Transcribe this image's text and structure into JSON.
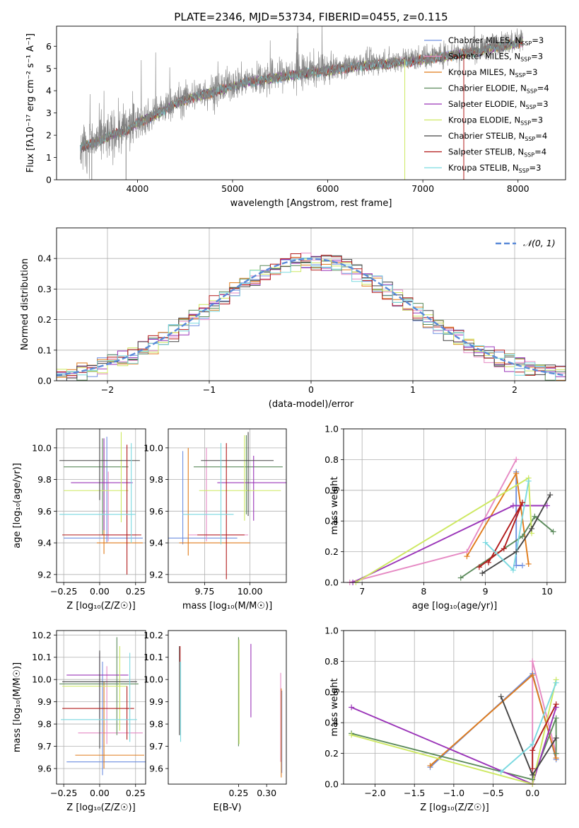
{
  "figure_title": "PLATE=2346, MJD=53734, FIBERID=0455, z=0.115",
  "chart_data": [
    {
      "id": "spectrum",
      "type": "line",
      "title": "PLATE=2346, MJD=53734, FIBERID=0455, z=0.115",
      "xlabel": "wavelength [Angstrom, rest frame]",
      "ylabel": "Flux [fλ10⁻¹⁷ erg cm⁻² s⁻¹ A⁻¹]",
      "xlim": [
        3150,
        8500
      ],
      "ylim": [
        0,
        6.9
      ],
      "xticks": [
        4000,
        5000,
        6000,
        7000,
        8000
      ],
      "yticks": [
        0,
        1,
        2,
        3,
        4,
        5,
        6
      ],
      "grid": false,
      "legend_position": "top-right",
      "data_trace": {
        "x_range": [
          3400,
          8050
        ],
        "color": "#808080",
        "approximate_shape_points": [
          [
            3400,
            1.5
          ],
          [
            3500,
            1.6
          ],
          [
            3700,
            2.0
          ],
          [
            3900,
            2.3
          ],
          [
            4000,
            2.6
          ],
          [
            4200,
            3.0
          ],
          [
            4400,
            3.5
          ],
          [
            4600,
            3.8
          ],
          [
            4800,
            4.0
          ],
          [
            5000,
            4.3
          ],
          [
            5200,
            4.5
          ],
          [
            5500,
            4.7
          ],
          [
            5800,
            4.9
          ],
          [
            6000,
            5.0
          ],
          [
            6300,
            5.2
          ],
          [
            6600,
            5.3
          ],
          [
            7000,
            5.5
          ],
          [
            7300,
            5.7
          ],
          [
            7600,
            5.9
          ],
          [
            7900,
            6.2
          ],
          [
            8050,
            6.3
          ]
        ]
      },
      "series": [
        {
          "name": "Chabrier MILES, N_SSP=3",
          "color": "#6f8fe0"
        },
        {
          "name": "Salpeter MILES, N_SSP=3",
          "color": "#e68ac4"
        },
        {
          "name": "Kroupa MILES, N_SSP=3",
          "color": "#e07b1a"
        },
        {
          "name": "Chabrier ELODIE, N_SSP=4",
          "color": "#5b8a5b"
        },
        {
          "name": "Salpeter ELODIE, N_SSP=3",
          "color": "#9a34b8"
        },
        {
          "name": "Kroupa ELODIE, N_SSP=3",
          "color": "#cde860"
        },
        {
          "name": "Chabrier STELIB, N_SSP=4",
          "color": "#444444"
        },
        {
          "name": "Salpeter STELIB, N_SSP=4",
          "color": "#b21b1b"
        },
        {
          "name": "Kroupa STELIB, N_SSP=3",
          "color": "#7ad9e0"
        }
      ]
    },
    {
      "id": "residuals",
      "type": "histogram",
      "xlabel": "(data-model)/error",
      "ylabel": "Normed distribution",
      "xlim": [
        -2.5,
        2.5
      ],
      "ylim": [
        0,
        0.5
      ],
      "xticks": [
        -2,
        -1,
        0,
        1,
        2
      ],
      "yticks": [
        0.0,
        0.1,
        0.2,
        0.3,
        0.4
      ],
      "grid": true,
      "legend_position": "top-right",
      "reference_curve": {
        "name": "𝒩(0, 1)",
        "color": "#5a8ad8",
        "mean": 0,
        "sigma": 1
      }
    },
    {
      "id": "age_vs_Z",
      "type": "errorbar",
      "xlabel": "Z [log₁₀(Z/Z☉)]",
      "ylabel": "age  [log₁₀(age/yr)]",
      "xlim": [
        -0.3,
        0.32
      ],
      "ylim": [
        9.15,
        10.12
      ],
      "xticks": [
        -0.25,
        0.0,
        0.25
      ],
      "yticks": [
        9.2,
        9.4,
        9.6,
        9.8,
        10.0
      ],
      "grid": true,
      "points": [
        {
          "series": "Chabrier MILES",
          "x": 0.05,
          "xerr": [
            0.3,
            0.25
          ],
          "y": 9.43,
          "yerr": [
            0.03,
            0.64
          ]
        },
        {
          "series": "Salpeter MILES",
          "x": 0.06,
          "xerr": [
            0.05,
            0.2
          ],
          "y": 9.45,
          "yerr": [
            0.04,
            0.4
          ]
        },
        {
          "series": "Kroupa MILES",
          "x": 0.03,
          "xerr": [
            0.05,
            0.27
          ],
          "y": 9.4,
          "yerr": [
            0.07,
            0.6
          ]
        },
        {
          "series": "Chabrier ELODIE",
          "x": 0.02,
          "xerr": [
            0.27,
            0.18
          ],
          "y": 9.88,
          "yerr": [
            0.43,
            0.18
          ]
        },
        {
          "series": "Salpeter ELODIE",
          "x": 0.03,
          "xerr": [
            0.23,
            0.2
          ],
          "y": 9.78,
          "yerr": [
            0.3,
            0.28
          ]
        },
        {
          "series": "Kroupa ELODIE",
          "x": 0.15,
          "xerr": [
            0.4,
            0.05
          ],
          "y": 9.73,
          "yerr": [
            0.2,
            0.37
          ]
        },
        {
          "series": "Chabrier STELIB",
          "x": 0.0,
          "xerr": [
            0.28,
            0.28
          ],
          "y": 9.92,
          "yerr": [
            0.25,
            0.2
          ]
        },
        {
          "series": "Salpeter STELIB",
          "x": 0.19,
          "xerr": [
            0.45,
            0.1
          ],
          "y": 9.45,
          "yerr": [
            0.25,
            0.57
          ]
        },
        {
          "series": "Kroupa STELIB",
          "x": 0.22,
          "xerr": [
            0.5,
            0.03
          ],
          "y": 9.58,
          "yerr": [
            0.18,
            0.45
          ]
        }
      ]
    },
    {
      "id": "age_vs_mass",
      "type": "errorbar",
      "xlabel": "mass [log₁₀(M/M☉)]",
      "ylabel": "",
      "xlim": [
        9.55,
        10.2
      ],
      "ylim": [
        9.15,
        10.12
      ],
      "xticks": [
        9.75,
        10.0
      ],
      "yticks": [
        9.2,
        9.4,
        9.6,
        9.8,
        10.0
      ],
      "grid": true,
      "points": [
        {
          "series": "Chabrier MILES",
          "x": 9.63,
          "xerr": [
            0.1,
            0.3
          ],
          "y": 9.43,
          "yerr": [
            0.04,
            0.55
          ]
        },
        {
          "series": "Salpeter MILES",
          "x": 9.76,
          "xerr": [
            0.1,
            0.23
          ],
          "y": 9.45,
          "yerr": [
            0.04,
            0.55
          ]
        },
        {
          "series": "Kroupa MILES",
          "x": 9.66,
          "xerr": [
            0.05,
            0.34
          ],
          "y": 9.4,
          "yerr": [
            0.08,
            0.6
          ]
        },
        {
          "series": "Chabrier ELODIE",
          "x": 9.98,
          "xerr": [
            0.29,
            0.2
          ],
          "y": 9.88,
          "yerr": [
            0.3,
            0.2
          ]
        },
        {
          "series": "Salpeter ELODIE",
          "x": 10.02,
          "xerr": [
            0.2,
            0.2
          ],
          "y": 9.78,
          "yerr": [
            0.24,
            0.17
          ]
        },
        {
          "series": "Kroupa ELODIE",
          "x": 9.97,
          "xerr": [
            0.25,
            0.2
          ],
          "y": 9.73,
          "yerr": [
            0.19,
            0.35
          ]
        },
        {
          "series": "Chabrier STELIB",
          "x": 9.99,
          "xerr": [
            0.26,
            0.14
          ],
          "y": 9.92,
          "yerr": [
            0.35,
            0.18
          ]
        },
        {
          "series": "Salpeter STELIB",
          "x": 9.87,
          "xerr": [
            0.16,
            0.1
          ],
          "y": 9.45,
          "yerr": [
            0.28,
            0.58
          ]
        },
        {
          "series": "Kroupa STELIB",
          "x": 9.84,
          "xerr": [
            0.21,
            0.07
          ],
          "y": 9.58,
          "yerr": [
            0.19,
            0.45
          ]
        }
      ]
    },
    {
      "id": "weight_vs_age",
      "type": "line",
      "xlabel": "age  [log₁₀(age/yr)]",
      "ylabel": "mass weight",
      "xlim": [
        6.7,
        10.3
      ],
      "ylim": [
        0,
        1.0
      ],
      "xticks": [
        7,
        8,
        9,
        10
      ],
      "yticks": [
        0.0,
        0.2,
        0.4,
        0.6,
        0.8,
        1.0
      ],
      "grid": true,
      "series": [
        {
          "name": "Chabrier MILES",
          "points": [
            [
              9.5,
              0.72
            ],
            [
              9.5,
              0.11
            ],
            [
              9.6,
              0.11
            ]
          ]
        },
        {
          "name": "Salpeter MILES",
          "points": [
            [
              6.8,
              0.0
            ],
            [
              8.7,
              0.2
            ],
            [
              9.5,
              0.8
            ]
          ]
        },
        {
          "name": "Kroupa MILES",
          "points": [
            [
              8.7,
              0.17
            ],
            [
              9.5,
              0.71
            ],
            [
              9.7,
              0.12
            ]
          ]
        },
        {
          "name": "Chabrier ELODIE",
          "points": [
            [
              8.6,
              0.03
            ],
            [
              9.6,
              0.3
            ],
            [
              9.8,
              0.43
            ],
            [
              10.1,
              0.33
            ]
          ]
        },
        {
          "name": "Salpeter ELODIE",
          "points": [
            [
              6.85,
              0.0
            ],
            [
              9.45,
              0.5
            ],
            [
              10.0,
              0.5
            ]
          ]
        },
        {
          "name": "Kroupa ELODIE",
          "points": [
            [
              6.9,
              0.0
            ],
            [
              9.7,
              0.68
            ],
            [
              9.75,
              0.32
            ]
          ]
        },
        {
          "name": "Chabrier STELIB",
          "points": [
            [
              8.95,
              0.06
            ],
            [
              9.5,
              0.2
            ],
            [
              9.75,
              0.35
            ],
            [
              10.05,
              0.57
            ]
          ]
        },
        {
          "name": "Salpeter STELIB",
          "points": [
            [
              8.9,
              0.1
            ],
            [
              9.3,
              0.22
            ],
            [
              9.6,
              0.52
            ],
            [
              9.05,
              0.13
            ]
          ]
        },
        {
          "name": "Kroupa STELIB",
          "points": [
            [
              9.0,
              0.26
            ],
            [
              9.45,
              0.08
            ],
            [
              9.7,
              0.66
            ]
          ]
        }
      ]
    },
    {
      "id": "mass_vs_Z",
      "type": "errorbar",
      "xlabel": "Z [log₁₀(Z/Z☉)]",
      "ylabel": "mass [log₁₀(M/M☉)]",
      "xlim": [
        -0.3,
        0.32
      ],
      "ylim": [
        9.53,
        10.22
      ],
      "xticks": [
        -0.25,
        0.0,
        0.25
      ],
      "yticks": [
        9.6,
        9.7,
        9.8,
        9.9,
        10.0,
        10.1,
        10.2
      ],
      "grid": true,
      "points": [
        {
          "series": "Chabrier MILES",
          "x": 0.02,
          "xerr": [
            0.25,
            0.3
          ],
          "y": 9.63,
          "yerr": [
            0.06,
            0.45
          ]
        },
        {
          "series": "Salpeter MILES",
          "x": 0.05,
          "xerr": [
            0.2,
            0.25
          ],
          "y": 9.76,
          "yerr": [
            0.05,
            0.3
          ]
        },
        {
          "series": "Kroupa MILES",
          "x": 0.03,
          "xerr": [
            0.2,
            0.28
          ],
          "y": 9.66,
          "yerr": [
            0.06,
            0.33
          ]
        },
        {
          "series": "Chabrier ELODIE",
          "x": 0.12,
          "xerr": [
            0.4,
            0.15
          ],
          "y": 9.98,
          "yerr": [
            0.23,
            0.21
          ]
        },
        {
          "series": "Salpeter ELODIE",
          "x": 0.0,
          "xerr": [
            0.23,
            0.2
          ],
          "y": 10.02,
          "yerr": [
            0.19,
            0.1
          ]
        },
        {
          "series": "Kroupa ELODIE",
          "x": 0.14,
          "xerr": [
            0.4,
            0.05
          ],
          "y": 9.97,
          "yerr": [
            0.2,
            0.18
          ]
        },
        {
          "series": "Chabrier STELIB",
          "x": 0.0,
          "xerr": [
            0.26,
            0.26
          ],
          "y": 9.99,
          "yerr": [
            0.3,
            0.14
          ]
        },
        {
          "series": "Salpeter STELIB",
          "x": 0.19,
          "xerr": [
            0.45,
            0.05
          ],
          "y": 9.87,
          "yerr": [
            0.14,
            0.1
          ]
        },
        {
          "series": "Kroupa STELIB",
          "x": 0.21,
          "xerr": [
            0.48,
            0.05
          ],
          "y": 9.82,
          "yerr": [
            0.1,
            0.3
          ]
        }
      ]
    },
    {
      "id": "mass_vs_ebv",
      "type": "errorbar",
      "xlabel": "E(B-V)",
      "ylabel": "",
      "xlim": [
        0.125,
        0.335
      ],
      "ylim": [
        9.53,
        10.22
      ],
      "xticks": [
        0.25,
        0.3
      ],
      "yticks": [
        9.6,
        9.7,
        9.8,
        9.9,
        10.0,
        10.1,
        10.2
      ],
      "grid": false,
      "points": [
        {
          "series": "Chabrier MILES",
          "x": 0.327,
          "y": 9.76,
          "yerr": [
            0.18,
            0.19
          ]
        },
        {
          "series": "Salpeter MILES",
          "x": 0.325,
          "y": 9.83,
          "yerr": [
            0.2,
            0.2
          ]
        },
        {
          "series": "Kroupa MILES",
          "x": 0.326,
          "y": 9.76,
          "yerr": [
            0.2,
            0.2
          ]
        },
        {
          "series": "Chabrier ELODIE",
          "x": 0.25,
          "y": 9.95,
          "yerr": [
            0.25,
            0.24
          ]
        },
        {
          "series": "Salpeter ELODIE",
          "x": 0.272,
          "y": 9.99,
          "yerr": [
            0.16,
            0.17
          ]
        },
        {
          "series": "Kroupa ELODIE",
          "x": 0.251,
          "y": 9.95,
          "yerr": [
            0.24,
            0.23
          ]
        },
        {
          "series": "Chabrier STELIB",
          "x": 0.145,
          "y": 9.95,
          "yerr": [
            0.2,
            0.2
          ]
        },
        {
          "series": "Salpeter STELIB",
          "x": 0.146,
          "y": 10.12,
          "yerr": [
            0.04,
            0.03
          ]
        },
        {
          "series": "Kroupa STELIB",
          "x": 0.147,
          "y": 9.9,
          "yerr": [
            0.18,
            0.18
          ]
        }
      ]
    },
    {
      "id": "weight_vs_Z",
      "type": "line",
      "xlabel": "Z [log₁₀(Z/Z☉)]",
      "ylabel": "mass weight",
      "xlim": [
        -2.4,
        0.42
      ],
      "ylim": [
        0,
        1.0
      ],
      "xticks": [
        -2.0,
        -1.5,
        -1.0,
        -0.5,
        0.0
      ],
      "yticks": [
        0.0,
        0.2,
        0.4,
        0.6,
        0.8,
        1.0
      ],
      "grid": true,
      "series": [
        {
          "name": "Chabrier MILES",
          "points": [
            [
              -1.3,
              0.11
            ],
            [
              0.0,
              0.72
            ],
            [
              0.3,
              0.16
            ]
          ]
        },
        {
          "name": "Salpeter MILES",
          "points": [
            [
              0.0,
              0.0
            ],
            [
              0.0,
              0.8
            ],
            [
              0.3,
              0.2
            ]
          ]
        },
        {
          "name": "Kroupa MILES",
          "points": [
            [
              -1.3,
              0.12
            ],
            [
              0.0,
              0.71
            ],
            [
              0.3,
              0.17
            ]
          ]
        },
        {
          "name": "Chabrier ELODIE",
          "points": [
            [
              -2.3,
              0.33
            ],
            [
              0.0,
              0.03
            ],
            [
              0.3,
              0.43
            ],
            [
              0.3,
              0.2
            ]
          ]
        },
        {
          "name": "Salpeter ELODIE",
          "points": [
            [
              -2.3,
              0.5
            ],
            [
              0.0,
              0.0
            ],
            [
              0.3,
              0.5
            ]
          ]
        },
        {
          "name": "Kroupa ELODIE",
          "points": [
            [
              -2.3,
              0.32
            ],
            [
              0.0,
              0.0
            ],
            [
              0.3,
              0.68
            ]
          ]
        },
        {
          "name": "Chabrier STELIB",
          "points": [
            [
              -0.4,
              0.57
            ],
            [
              0.0,
              0.06
            ],
            [
              0.3,
              0.3
            ]
          ]
        },
        {
          "name": "Salpeter STELIB",
          "points": [
            [
              0.0,
              0.1
            ],
            [
              0.0,
              0.22
            ],
            [
              0.3,
              0.52
            ]
          ]
        },
        {
          "name": "Kroupa STELIB",
          "points": [
            [
              -0.4,
              0.08
            ],
            [
              0.0,
              0.26
            ],
            [
              0.3,
              0.66
            ]
          ]
        }
      ]
    }
  ]
}
